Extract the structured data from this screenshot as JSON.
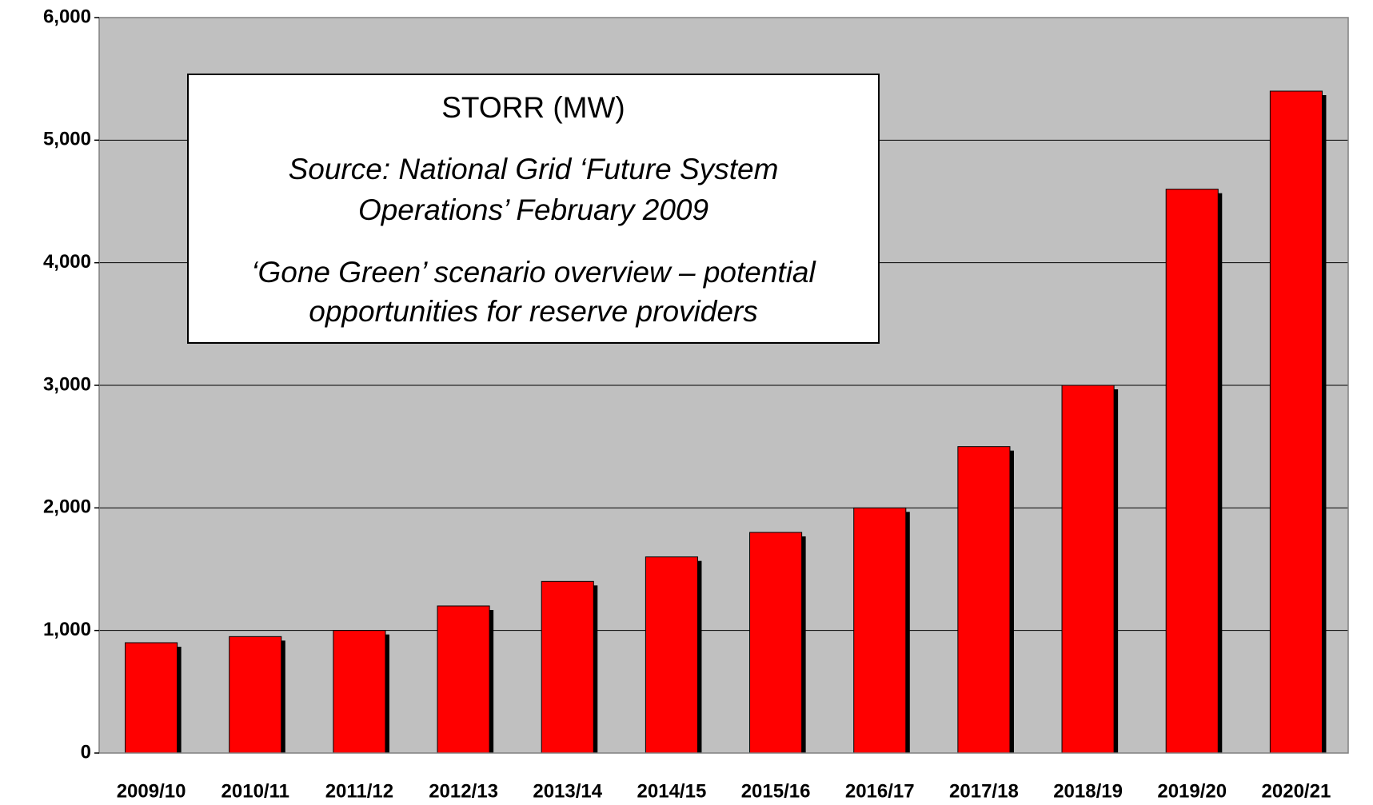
{
  "chart_data": {
    "type": "bar",
    "categories": [
      "2009/10",
      "2010/11",
      "2011/12",
      "2012/13",
      "2013/14",
      "2014/15",
      "2015/16",
      "2016/17",
      "2017/18",
      "2018/19",
      "2019/20",
      "2020/21"
    ],
    "values": [
      900,
      950,
      1000,
      1200,
      1400,
      1600,
      1800,
      2000,
      2500,
      3000,
      4600,
      5400
    ],
    "color": "#ff0000",
    "ylim": [
      0,
      6000
    ],
    "yticks": [
      0,
      {
        "value": 1000,
        "label": "1,000"
      },
      {
        "value": 2000,
        "label": "2,000"
      },
      {
        "value": 3000,
        "label": "3,000"
      },
      {
        "value": 4000,
        "label": "4,000"
      },
      {
        "value": 5000,
        "label": "5,000"
      },
      {
        "value": 6000,
        "label": "6,000"
      }
    ],
    "grid": true,
    "annotations": [
      "STORR (MW)",
      "Source:  National Grid  ‘Future System",
      "Operations’  February 2009",
      "‘Gone Green’ scenario overview – potential",
      "opportunities for reserve providers"
    ]
  }
}
